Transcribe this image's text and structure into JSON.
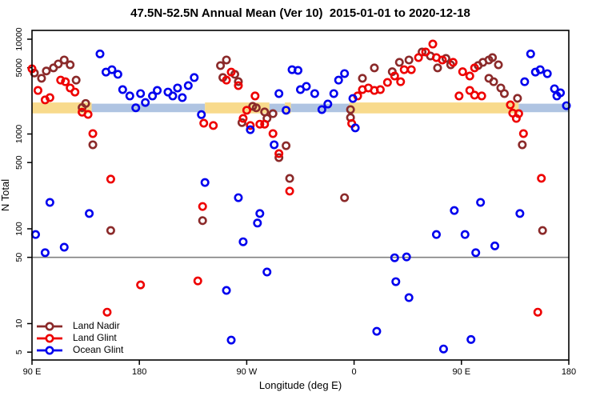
{
  "chart_data": {
    "type": "scatter",
    "title": "47.5N-52.5N Annual Mean (Ver 10)  2015-01-01 to 2020-12-18",
    "xlabel": "Longitude (deg E)",
    "ylabel": "N Total",
    "y_scale": "log",
    "xlim": [
      90,
      540
    ],
    "ylim": [
      4.1,
      12400
    ],
    "grid": false,
    "legend_position": "bottom-left",
    "x_ticks": [
      {
        "pos": 90,
        "label": "90 E"
      },
      {
        "pos": 180,
        "label": "180"
      },
      {
        "pos": 270,
        "label": "90 W"
      },
      {
        "pos": 360,
        "label": "0"
      },
      {
        "pos": 450,
        "label": "90 E"
      },
      {
        "pos": 540,
        "label": "180"
      }
    ],
    "y_ticks": [
      {
        "value": 5,
        "label": "5"
      },
      {
        "value": 10,
        "label": "10"
      },
      {
        "value": 50,
        "label": "50"
      },
      {
        "value": 100,
        "label": "100"
      },
      {
        "value": 500,
        "label": "500"
      },
      {
        "value": 1000,
        "label": "1000"
      },
      {
        "value": 5000,
        "label": "5000"
      },
      {
        "value": 10000,
        "label": "10000"
      }
    ],
    "reference_line": {
      "value": 50,
      "color": "#808080"
    },
    "surface_band": {
      "description": "land/ocean strip along latitude band",
      "value_range": [
        1650,
        2150
      ],
      "land_color": "#F8DA8C",
      "ocean_color": "#AFC4E2",
      "segments": [
        {
          "type": "land",
          "from": 90,
          "to": 140
        },
        {
          "type": "ocean",
          "from": 140,
          "to": 235
        },
        {
          "type": "land",
          "from": 235,
          "to": 289
        },
        {
          "type": "ocean",
          "from": 289,
          "to": 302
        },
        {
          "type": "land",
          "from": 302,
          "to": 307
        },
        {
          "type": "ocean",
          "from": 307,
          "to": 356
        },
        {
          "type": "land",
          "from": 356,
          "to": 498
        },
        {
          "type": "ocean",
          "from": 498,
          "to": 540
        }
      ]
    },
    "series": [
      {
        "name": "Land Nadir",
        "color": "#8B2A2A",
        "points": [
          [
            92,
            4400
          ],
          [
            98,
            3870
          ],
          [
            102,
            4620
          ],
          [
            108,
            4980
          ],
          [
            112,
            5480
          ],
          [
            117,
            6040
          ],
          [
            122,
            5370
          ],
          [
            127,
            3700
          ],
          [
            135,
            2100
          ],
          [
            132,
            1900
          ],
          [
            141,
            770
          ],
          [
            156,
            96
          ],
          [
            233,
            122
          ],
          [
            253,
            6040
          ],
          [
            248,
            5270
          ],
          [
            250,
            3940
          ],
          [
            260,
            4260
          ],
          [
            263,
            3570
          ],
          [
            266,
            1320
          ],
          [
            275,
            1960
          ],
          [
            278,
            1890
          ],
          [
            285,
            1710
          ],
          [
            292,
            1640
          ],
          [
            287,
            1460
          ],
          [
            297,
            564
          ],
          [
            303,
            753
          ],
          [
            306,
            340
          ],
          [
            352,
            213
          ],
          [
            357,
            1810
          ],
          [
            357,
            1490
          ],
          [
            367,
            3870
          ],
          [
            377,
            4980
          ],
          [
            392,
            4540
          ],
          [
            398,
            5700
          ],
          [
            406,
            6040
          ],
          [
            417,
            7330
          ],
          [
            424,
            6650
          ],
          [
            430,
            4980
          ],
          [
            437,
            6270
          ],
          [
            441,
            5370
          ],
          [
            464,
            5280
          ],
          [
            468,
            5700
          ],
          [
            473,
            6040
          ],
          [
            476,
            6400
          ],
          [
            481,
            5370
          ],
          [
            473,
            3870
          ],
          [
            477,
            3560
          ],
          [
            483,
            3060
          ],
          [
            486,
            2670
          ],
          [
            497,
            2380
          ],
          [
            501,
            770
          ],
          [
            518,
            96
          ]
        ]
      },
      {
        "name": "Land Glint",
        "color": "#EE0000",
        "points": [
          [
            90,
            4870
          ],
          [
            95,
            2880
          ],
          [
            101,
            2290
          ],
          [
            105,
            2420
          ],
          [
            114,
            3700
          ],
          [
            118,
            3560
          ],
          [
            122,
            3060
          ],
          [
            126,
            2770
          ],
          [
            132,
            1700
          ],
          [
            137,
            1610
          ],
          [
            141,
            1010
          ],
          [
            153,
            13.2
          ],
          [
            156,
            334
          ],
          [
            181,
            25.6
          ],
          [
            229,
            28.2
          ],
          [
            233,
            172
          ],
          [
            234,
            1300
          ],
          [
            242,
            1230
          ],
          [
            253,
            3700
          ],
          [
            257,
            4500
          ],
          [
            263,
            3240
          ],
          [
            270,
            1780
          ],
          [
            267,
            1460
          ],
          [
            273,
            1230
          ],
          [
            277,
            2520
          ],
          [
            281,
            1270
          ],
          [
            285,
            1270
          ],
          [
            292,
            1010
          ],
          [
            297,
            621
          ],
          [
            306,
            250
          ],
          [
            358,
            1290
          ],
          [
            363,
            2520
          ],
          [
            367,
            2940
          ],
          [
            372,
            3060
          ],
          [
            377,
            2880
          ],
          [
            382,
            2940
          ],
          [
            388,
            3500
          ],
          [
            394,
            4090
          ],
          [
            399,
            3560
          ],
          [
            402,
            4770
          ],
          [
            408,
            4770
          ],
          [
            414,
            6400
          ],
          [
            420,
            7330
          ],
          [
            426,
            8890
          ],
          [
            429,
            6400
          ],
          [
            434,
            6040
          ],
          [
            443,
            5700
          ],
          [
            448,
            2520
          ],
          [
            451,
            4540
          ],
          [
            457,
            4090
          ],
          [
            457,
            2880
          ],
          [
            461,
            4980
          ],
          [
            461,
            2570
          ],
          [
            467,
            2520
          ],
          [
            491,
            2030
          ],
          [
            493,
            1660
          ],
          [
            498,
            1640
          ],
          [
            496,
            1460
          ],
          [
            502,
            1010
          ],
          [
            517,
            341
          ],
          [
            514,
            13.2
          ]
        ]
      },
      {
        "name": "Ocean Glint",
        "color": "#0000EE",
        "points": [
          [
            147,
            7000
          ],
          [
            152,
            4500
          ],
          [
            157,
            4770
          ],
          [
            162,
            4260
          ],
          [
            166,
            2940
          ],
          [
            172,
            2520
          ],
          [
            177,
            1890
          ],
          [
            181,
            2670
          ],
          [
            185,
            2150
          ],
          [
            191,
            2520
          ],
          [
            195,
            2880
          ],
          [
            204,
            2770
          ],
          [
            208,
            2520
          ],
          [
            212,
            3060
          ],
          [
            216,
            2420
          ],
          [
            221,
            3240
          ],
          [
            226,
            3940
          ],
          [
            232,
            1600
          ],
          [
            273,
            1110
          ],
          [
            293,
            770
          ],
          [
            297,
            2670
          ],
          [
            303,
            1780
          ],
          [
            308,
            4770
          ],
          [
            313,
            4690
          ],
          [
            315,
            2940
          ],
          [
            320,
            3180
          ],
          [
            327,
            2670
          ],
          [
            333,
            1810
          ],
          [
            338,
            2070
          ],
          [
            343,
            2670
          ],
          [
            347,
            3700
          ],
          [
            352,
            4340
          ],
          [
            359,
            2370
          ],
          [
            361,
            1160
          ],
          [
            508,
            7000
          ],
          [
            512,
            4500
          ],
          [
            516,
            4770
          ],
          [
            522,
            4330
          ],
          [
            503,
            3560
          ],
          [
            528,
            3000
          ],
          [
            530,
            2520
          ],
          [
            533,
            2720
          ],
          [
            538,
            1990
          ],
          [
            93,
            87
          ],
          [
            101,
            56
          ],
          [
            105,
            190
          ],
          [
            117,
            64
          ],
          [
            138,
            145
          ],
          [
            235,
            308
          ],
          [
            253,
            22.4
          ],
          [
            257,
            6.7
          ],
          [
            263,
            213
          ],
          [
            267,
            73
          ],
          [
            279,
            115
          ],
          [
            281,
            145
          ],
          [
            287,
            35
          ],
          [
            379,
            8.3
          ],
          [
            394,
            49.5
          ],
          [
            395,
            27.7
          ],
          [
            404,
            50.5
          ],
          [
            406,
            18.8
          ],
          [
            429,
            87
          ],
          [
            435,
            5.4
          ],
          [
            444,
            156
          ],
          [
            453,
            87
          ],
          [
            458,
            6.8
          ],
          [
            462,
            56
          ],
          [
            466,
            190
          ],
          [
            478,
            66
          ],
          [
            499,
            145
          ]
        ]
      }
    ]
  },
  "layout_colors": {
    "axis": "#000000",
    "background": "#ffffff",
    "text": "#000000"
  }
}
